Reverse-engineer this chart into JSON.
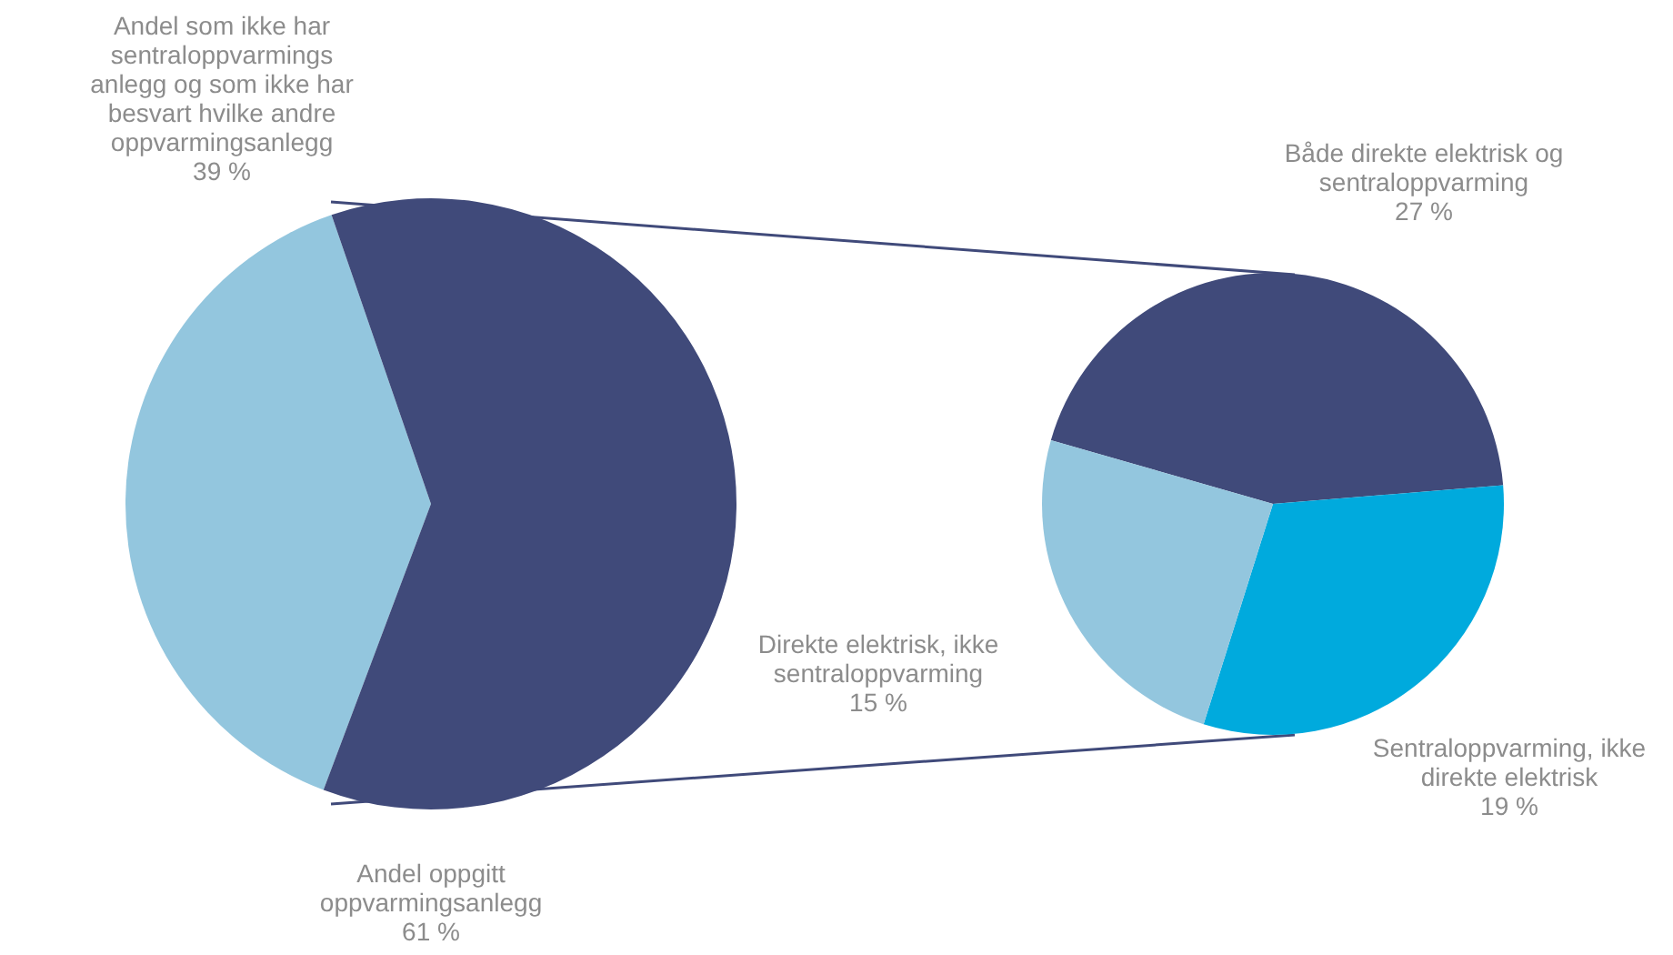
{
  "chart_data": [
    {
      "type": "pie",
      "categories": [
        "Andel  som ikke har\nsentraloppvarmings\nanlegg og som ikke har\nbesvart hvilke andre\noppvarmingsanlegg",
        "Andel oppgitt\noppvarmingsanlegg"
      ],
      "values": [
        39,
        61
      ],
      "colors": [
        "#93c6de",
        "#404a7a"
      ],
      "value_labels": [
        "39 %",
        "61 %"
      ]
    },
    {
      "type": "pie",
      "categories": [
        "Både direkte elektrisk og\nsentraloppvarming",
        "Sentraloppvarming, ikke\ndirekte elektrisk",
        "Direkte elektrisk, ikke\nsentraloppvarming"
      ],
      "values": [
        27,
        19,
        15
      ],
      "colors": [
        "#404a7a",
        "#00aadd",
        "#93c6de"
      ],
      "value_labels": [
        "27 %",
        "19 %",
        "15 %"
      ]
    }
  ]
}
